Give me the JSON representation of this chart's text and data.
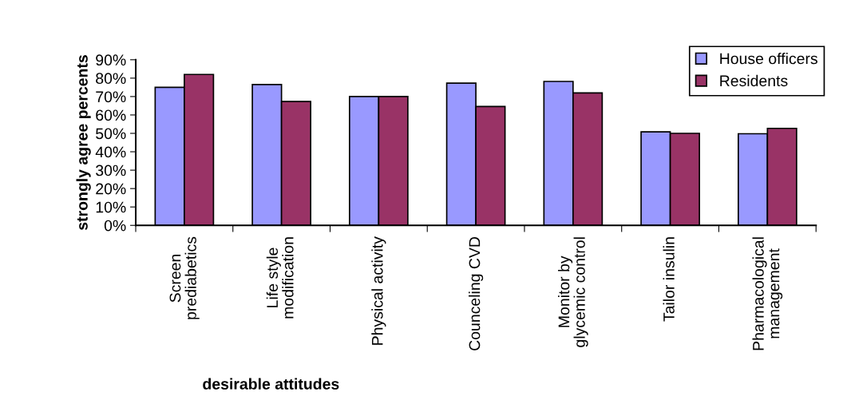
{
  "chart_data": {
    "type": "bar",
    "xlabel": "desirable attitudes",
    "ylabel": "strongly agree percents",
    "categories": [
      "Screen\nprediabetics",
      "Life style\nmodification",
      "Physical activity",
      "Counceling CVD",
      "Monitor by\nglycemic control",
      "Tailor insulin",
      "Pharmacological\nmanagement"
    ],
    "series": [
      {
        "name": "House officers",
        "color": "#9999ff",
        "values": [
          75,
          76.5,
          70,
          77.3,
          78.2,
          50.8,
          49.8
        ]
      },
      {
        "name": "Residents",
        "color": "#993366",
        "values": [
          82,
          67.3,
          70,
          64.6,
          72,
          50,
          52.7
        ]
      }
    ],
    "ylim": [
      0,
      90
    ],
    "yticks": [
      {
        "value": 0,
        "label": "0%"
      },
      {
        "value": 10,
        "label": "10%"
      },
      {
        "value": 20,
        "label": "20%"
      },
      {
        "value": 30,
        "label": "30%"
      },
      {
        "value": 40,
        "label": "40%"
      },
      {
        "value": 50,
        "label": "50%"
      },
      {
        "value": 60,
        "label": "60%"
      },
      {
        "value": 70,
        "label": "70%"
      },
      {
        "value": 80,
        "label": "80%"
      },
      {
        "value": 90,
        "label": "90%"
      }
    ],
    "grid": false,
    "legend": "top right"
  }
}
